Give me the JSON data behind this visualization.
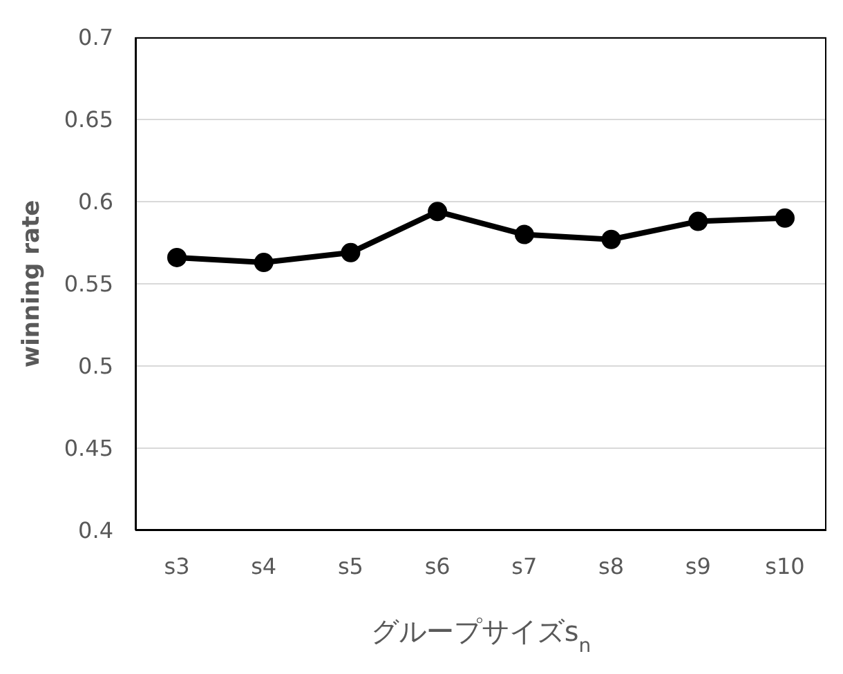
{
  "chart_data": {
    "type": "line",
    "ylabel": "winning rate",
    "xlabel": "グループサイズs$_{n}$",
    "categories": [
      "s3",
      "s4",
      "s5",
      "s6",
      "s7",
      "s8",
      "s9",
      "s10"
    ],
    "series": [
      {
        "color": "#000000",
        "values": [
          0.566,
          0.563,
          0.569,
          0.594,
          0.58,
          0.577,
          0.588,
          0.59
        ]
      }
    ],
    "ylim": [
      0.4,
      0.7
    ],
    "yticks": [
      0.4,
      0.45,
      0.5,
      0.55,
      0.6,
      0.65,
      0.7
    ],
    "grid": "y",
    "marker": "circle",
    "line_style": "solid",
    "legend": false
  }
}
